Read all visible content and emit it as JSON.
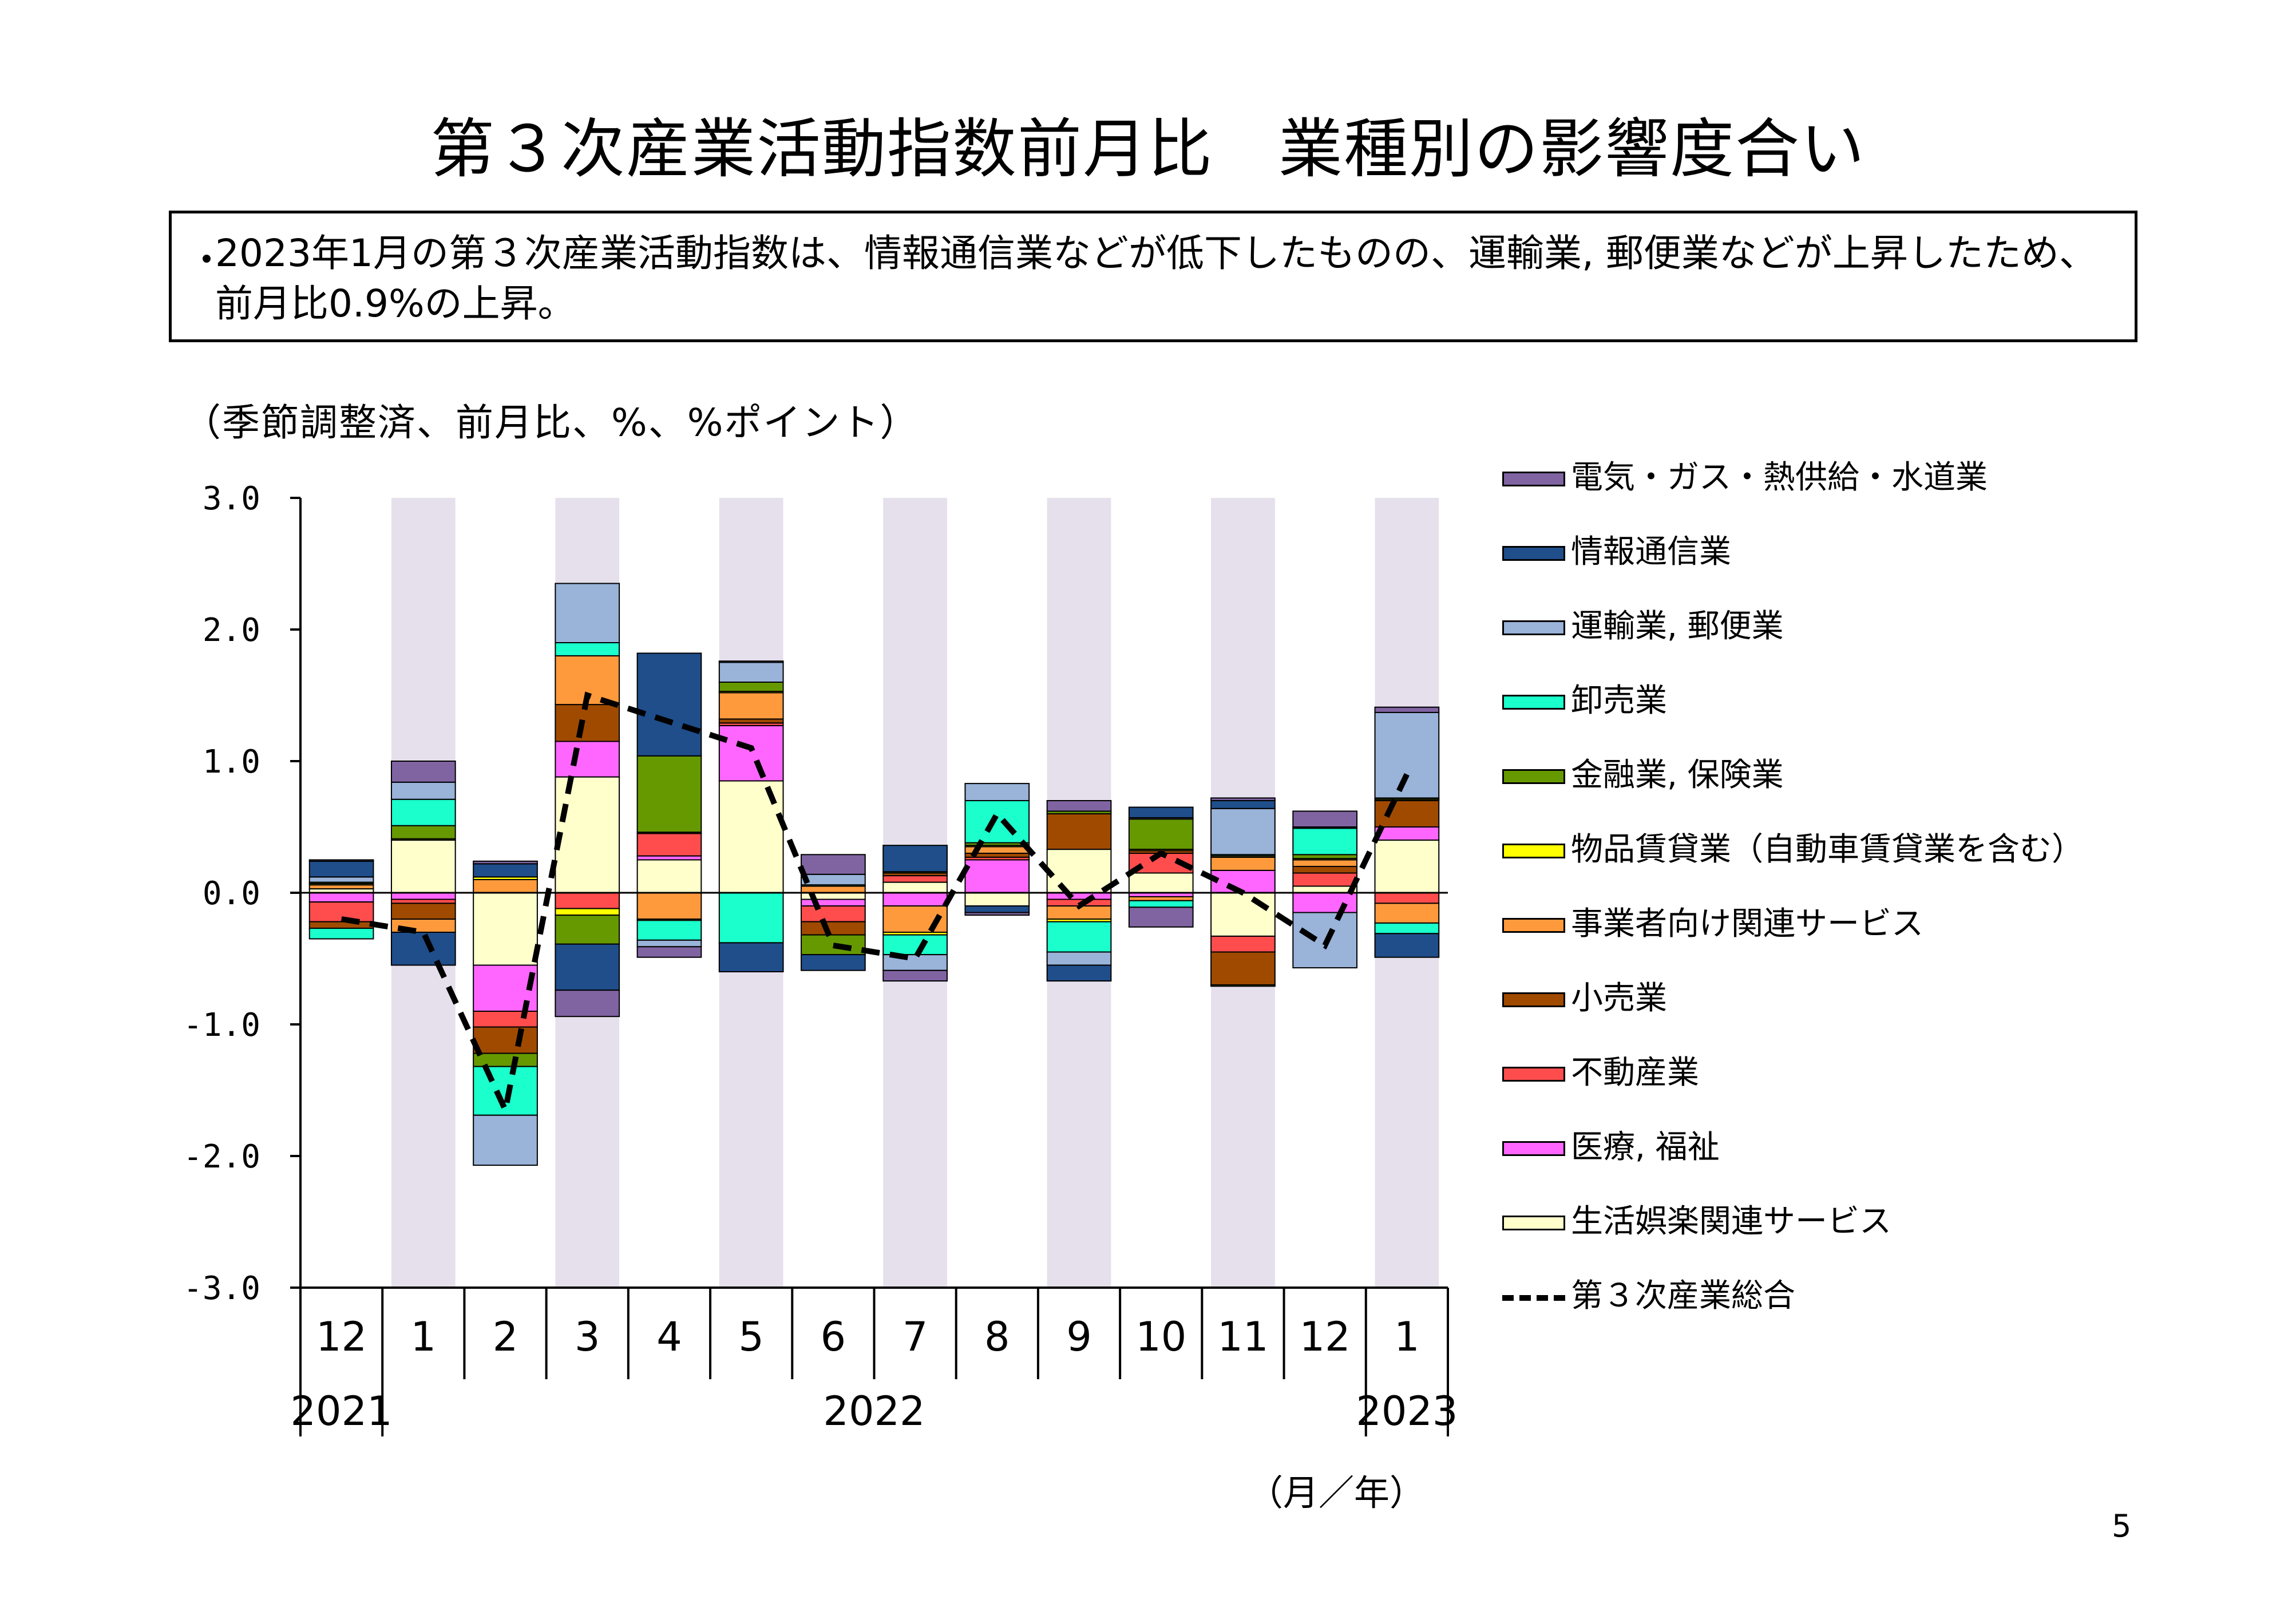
{
  "title": "第３次産業活動指数前月比　業種別の影響度合い",
  "note": {
    "bullet": "・",
    "text": "2023年1月の第３次産業活動指数は、情報通信業などが低下したものの、運輸業, 郵便業などが上昇したため、前月比0.9%の上昇。"
  },
  "unit_label": "（季節調整済、前月比、%、%ポイント）",
  "page_number": "5",
  "chart_data": {
    "type": "bar",
    "stacked": true,
    "overlay_line": "第３次産業総合",
    "ylim": [
      -3.0,
      3.0
    ],
    "yticks": [
      "3.0",
      "2.0",
      "1.0",
      "0.0",
      "-1.0",
      "-2.0",
      "-3.0"
    ],
    "categories": [
      "12",
      "1",
      "2",
      "3",
      "4",
      "5",
      "6",
      "7",
      "8",
      "9",
      "10",
      "11",
      "12",
      "1"
    ],
    "year_labels": [
      {
        "label": "2021",
        "from": 0,
        "to": 0
      },
      {
        "label": "2022",
        "from": 1,
        "to": 12
      },
      {
        "label": "2023",
        "from": 13,
        "to": 13
      }
    ],
    "xunit": "（月／年）",
    "shaded_columns": [
      1,
      3,
      5,
      7,
      9,
      11,
      13
    ],
    "colors": {
      "shade": "#e5e0ec",
      "line": "#000000"
    },
    "series": [
      {
        "name": "生活娯楽関連サービス",
        "color": "#ffffcc",
        "values": [
          0.03,
          0.4,
          -0.55,
          0.88,
          0.25,
          0.85,
          -0.05,
          0.08,
          -0.1,
          0.33,
          0.15,
          -0.33,
          0.05,
          0.4
        ]
      },
      {
        "name": "医療, 福祉",
        "color": "#ff66ff",
        "values": [
          -0.07,
          -0.05,
          -0.35,
          0.27,
          0.03,
          0.42,
          -0.05,
          -0.1,
          0.25,
          -0.05,
          -0.03,
          0.17,
          -0.15,
          0.1
        ]
      },
      {
        "name": "不動産業",
        "color": "#ff4d4d",
        "values": [
          -0.15,
          -0.03,
          -0.12,
          -0.12,
          0.17,
          0.02,
          -0.12,
          0.05,
          0.02,
          -0.05,
          0.15,
          -0.12,
          0.1,
          -0.08
        ]
      },
      {
        "name": "小売業",
        "color": "#a04a00",
        "values": [
          -0.05,
          -0.12,
          -0.2,
          0.28,
          0.01,
          0.03,
          -0.1,
          0.02,
          0.03,
          0.27,
          0.02,
          -0.25,
          0.05,
          0.2
        ]
      },
      {
        "name": "事業者向け関連サービス",
        "color": "#ff9a3c",
        "values": [
          0.03,
          -0.1,
          0.1,
          0.37,
          -0.2,
          0.2,
          0.05,
          -0.2,
          0.05,
          -0.1,
          -0.03,
          0.1,
          0.05,
          -0.15
        ]
      },
      {
        "name": "物品賃貸業（自動車賃貸業を含む）",
        "color": "#ffff00",
        "values": [
          0.01,
          0.01,
          0.02,
          -0.05,
          -0.01,
          0.01,
          0.0,
          -0.02,
          0.01,
          -0.02,
          0.01,
          0.01,
          0.01,
          0.01
        ]
      },
      {
        "name": "金融業, 保険業",
        "color": "#669900",
        "values": [
          0.01,
          0.1,
          -0.1,
          -0.22,
          0.58,
          0.07,
          -0.15,
          0.01,
          0.02,
          0.02,
          0.23,
          -0.01,
          0.03,
          0.01
        ]
      },
      {
        "name": "卸売業",
        "color": "#1affcc",
        "values": [
          -0.08,
          0.2,
          -0.37,
          0.1,
          -0.15,
          -0.38,
          0.01,
          -0.15,
          0.32,
          -0.23,
          -0.05,
          0.01,
          0.2,
          -0.08
        ]
      },
      {
        "name": "運輸業, 郵便業",
        "color": "#99b3d9",
        "values": [
          0.04,
          0.13,
          -0.38,
          0.45,
          -0.05,
          0.15,
          0.08,
          -0.12,
          0.13,
          -0.1,
          0.01,
          0.35,
          -0.42,
          0.65
        ]
      },
      {
        "name": "情報通信業",
        "color": "#1f4e8a",
        "values": [
          0.12,
          -0.25,
          0.1,
          -0.35,
          0.78,
          -0.22,
          -0.12,
          0.2,
          -0.05,
          -0.12,
          0.08,
          0.06,
          0.01,
          -0.18
        ]
      },
      {
        "name": "電気・ガス・熱供給・水道業",
        "color": "#8064a2",
        "values": [
          0.01,
          0.16,
          0.02,
          -0.2,
          -0.08,
          0.01,
          0.15,
          -0.08,
          -0.02,
          0.08,
          -0.15,
          0.02,
          0.12,
          0.04
        ]
      }
    ],
    "legend_order": [
      "電気・ガス・熱供給・水道業",
      "情報通信業",
      "運輸業, 郵便業",
      "卸売業",
      "金融業, 保険業",
      "物品賃貸業（自動車賃貸業を含む）",
      "事業者向け関連サービス",
      "小売業",
      "不動産業",
      "医療, 福祉",
      "生活娯楽関連サービス",
      "第３次産業総合"
    ],
    "line_series": {
      "name": "第３次産業総合",
      "values": [
        -0.2,
        -0.3,
        -1.65,
        1.5,
        1.3,
        1.1,
        -0.4,
        -0.5,
        0.6,
        -0.1,
        0.3,
        0.0,
        -0.4,
        0.9
      ]
    }
  }
}
